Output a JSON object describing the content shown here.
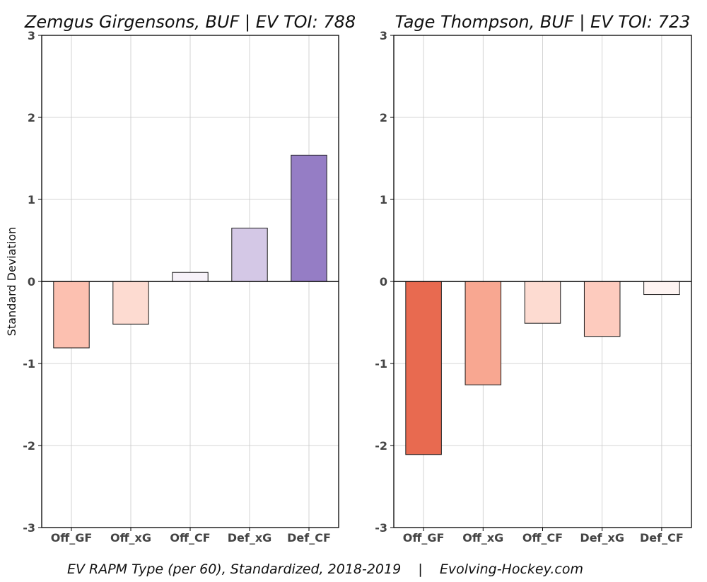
{
  "caption": "EV RAPM Type (per 60), Standardized, 2018-2019    |    Evolving-Hockey.com",
  "chart_data": [
    {
      "type": "bar",
      "title": "Zemgus Girgensons, BUF  |  EV TOI: 788",
      "ylabel": "Standard Deviation",
      "xlabel": "",
      "ylim": [
        -3,
        3
      ],
      "yticks": [
        -3,
        -2,
        -1,
        0,
        1,
        2,
        3
      ],
      "grid": true,
      "categories": [
        "Off_GF",
        "Off_xG",
        "Off_CF",
        "Def_xG",
        "Def_CF"
      ],
      "values": [
        -0.81,
        -0.52,
        0.11,
        0.65,
        1.54
      ],
      "colors": [
        "#fcc0b0",
        "#fddbd1",
        "#f7f2f9",
        "#d4c8e6",
        "#957dc5"
      ]
    },
    {
      "type": "bar",
      "title": "Tage Thompson, BUF  |  EV TOI: 723",
      "ylabel": "",
      "xlabel": "",
      "ylim": [
        -3,
        3
      ],
      "yticks": [
        -3,
        -2,
        -1,
        0,
        1,
        2,
        3
      ],
      "grid": true,
      "categories": [
        "Off_GF",
        "Off_xG",
        "Off_CF",
        "Def_xG",
        "Def_CF"
      ],
      "values": [
        -2.11,
        -1.26,
        -0.51,
        -0.67,
        -0.16
      ],
      "colors": [
        "#e86a50",
        "#f8a791",
        "#fddbd1",
        "#fdcbbe",
        "#fef4f2"
      ]
    }
  ]
}
